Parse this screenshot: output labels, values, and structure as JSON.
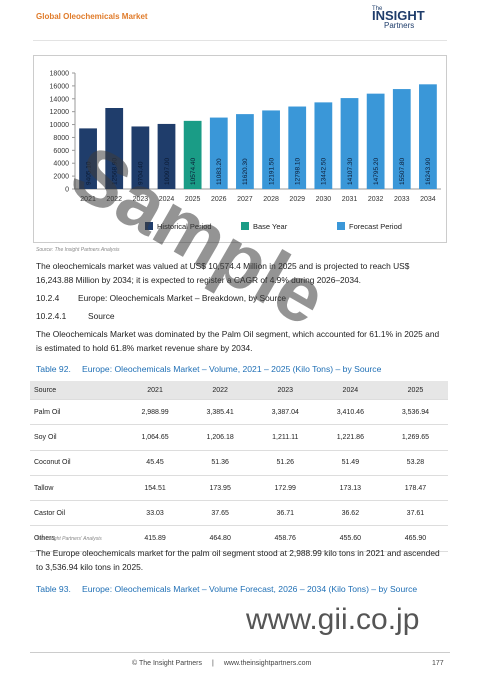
{
  "header": {
    "title": "Global Oleochemicals Market",
    "logo_top": "The",
    "logo_main": "INSIGHT",
    "logo_bottom": "Partners"
  },
  "chart_data": {
    "type": "bar",
    "categories": [
      "2021",
      "2022",
      "2023",
      "2024",
      "2025",
      "2026",
      "2027",
      "2028",
      "2029",
      "2030",
      "2031",
      "2032",
      "2033",
      "2034"
    ],
    "series": [
      {
        "name": "Historical Period",
        "color": "#1f3d6b",
        "values": [
          9405.1,
          12568.9,
          9704.4,
          10097.0,
          null,
          null,
          null,
          null,
          null,
          null,
          null,
          null,
          null,
          null
        ],
        "value_labels": [
          "9405.10",
          "12568.90",
          "9704.40",
          "10097.00",
          null,
          null,
          null,
          null,
          null,
          null,
          null,
          null,
          null,
          null
        ]
      },
      {
        "name": "Base Year",
        "color": "#1a9c86",
        "values": [
          null,
          null,
          null,
          null,
          10574.4,
          null,
          null,
          null,
          null,
          null,
          null,
          null,
          null,
          null
        ],
        "value_labels": [
          null,
          null,
          null,
          null,
          "10574.40",
          null,
          null,
          null,
          null,
          null,
          null,
          null,
          null,
          null
        ]
      },
      {
        "name": "Forecast Period",
        "color": "#3a97d8",
        "values": [
          null,
          null,
          null,
          null,
          null,
          11083.2,
          11620.3,
          12191.5,
          12798.1,
          13442.5,
          14107.3,
          14795.2,
          15507.8,
          16243.9
        ],
        "value_labels": [
          null,
          null,
          null,
          null,
          null,
          "11083.20",
          "11620.30",
          "12191.50",
          "12798.10",
          "13442.50",
          "14107.30",
          "14795.20",
          "15507.80",
          "16243.90"
        ]
      }
    ],
    "ylim": [
      0,
      18000
    ],
    "yticks": [
      0,
      2000,
      4000,
      6000,
      8000,
      10000,
      12000,
      14000,
      16000,
      18000
    ],
    "source": "Source: The Insight Partners Analysis"
  },
  "body": {
    "para1": "The oleochemicals market was valued at US$ 10,574.4 Million in 2025 and is projected to reach US$ 16,243.88 Million by 2034; it is expected to register a CAGR of 4.9% during 2026–2034.",
    "section_number": "10.2.4",
    "section_title": "Europe: Oleochemicals Market – Breakdown, by Source",
    "subsection_number": "10.2.4.1",
    "subsection_title": "Source",
    "para2": "The Oleochemicals Market was dominated by the Palm Oil segment, which accounted for 61.1% in 2025 and is estimated to hold 61.8% market revenue share by 2034.",
    "table_caption_number": "Table 92.",
    "table_caption": "Europe: Oleochemicals Market – Volume, 2021 – 2025 (Kilo Tons) – by Source",
    "table": {
      "header": [
        "Source",
        "2021",
        "2022",
        "2023",
        "2024",
        "2025"
      ],
      "rows": [
        [
          "Palm Oil",
          "2,988.99",
          "3,385.41",
          "3,387.04",
          "3,410.46",
          "3,536.94"
        ],
        [
          "Soy Oil",
          "1,064.65",
          "1,206.18",
          "1,211.11",
          "1,221.86",
          "1,269.65"
        ],
        [
          "Coconut Oil",
          "45.45",
          "51.36",
          "51.26",
          "51.49",
          "53.28"
        ],
        [
          "Tallow",
          "154.51",
          "173.95",
          "172.99",
          "173.13",
          "178.47"
        ],
        [
          "Castor Oil",
          "33.03",
          "37.65",
          "36.71",
          "36.62",
          "37.61"
        ],
        [
          "Others",
          "415.89",
          "464.80",
          "458.76",
          "455.60",
          "465.90"
        ]
      ]
    },
    "table_source": "The Insight Partners' Analysis",
    "para3": "The Europe oleochemicals market for the palm oil segment stood at 2,988.99 kilo tons in 2021 and ascended to 3,536.94 kilo tons in 2025.",
    "table2_caption_number": "Table 93.",
    "table2_caption": "Europe: Oleochemicals Market – Volume Forecast, 2026 – 2034 (Kilo Tons) – by Source"
  },
  "watermark": {
    "sample": "Sample",
    "site": "www.gii.co.jp"
  },
  "footer": {
    "copyright": "© The Insight Partners",
    "separator": "|",
    "website": "www.theinsightpartners.com",
    "page": "177"
  }
}
